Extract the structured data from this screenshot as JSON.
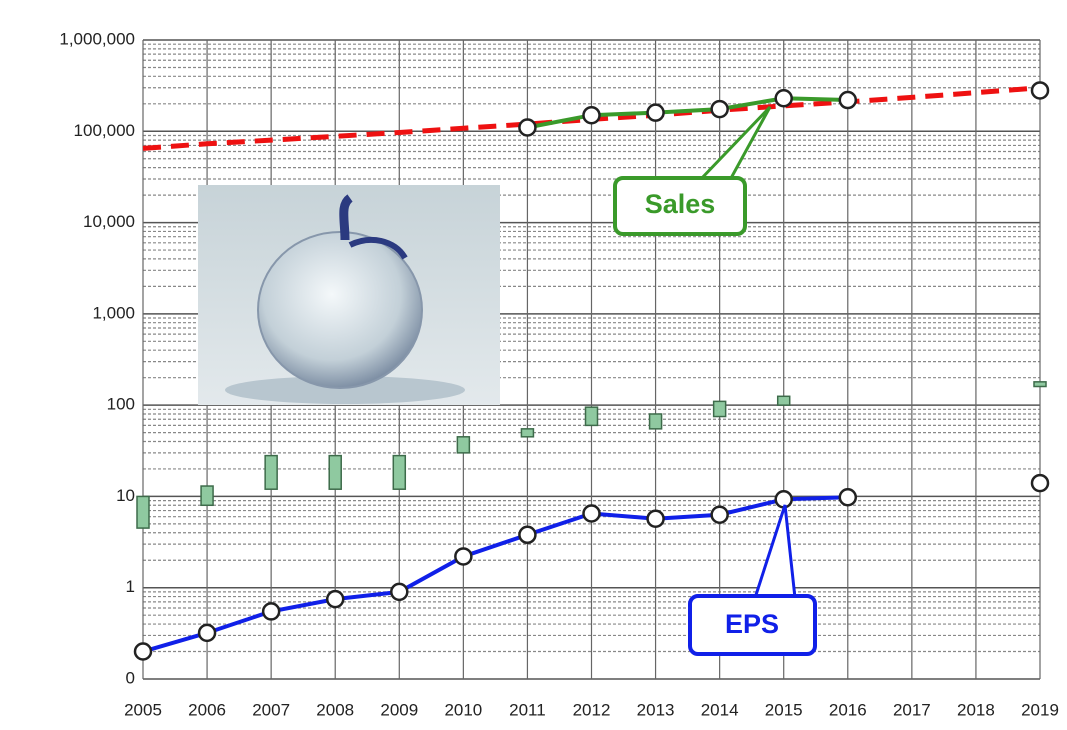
{
  "chart_data": {
    "type": "line",
    "log_scale": true,
    "grid": true,
    "categories": [
      "2005",
      "2006",
      "2007",
      "2008",
      "2009",
      "2010",
      "2011",
      "2012",
      "2013",
      "2014",
      "2015",
      "2016",
      "2017",
      "2018",
      "2019"
    ],
    "ylim": [
      0.1,
      1000000
    ],
    "yticks": [
      {
        "value": 0.1,
        "label": "0"
      },
      1,
      10,
      100,
      {
        "value": 1000,
        "label": "1,000"
      },
      {
        "value": 10000,
        "label": "10,000"
      },
      {
        "value": 100000,
        "label": "100,000"
      },
      {
        "value": 1000000,
        "label": "1,000,000"
      }
    ],
    "series": [
      {
        "name": "Sales",
        "color": "#3a9a2a",
        "values": [
          null,
          null,
          null,
          null,
          null,
          null,
          110000,
          150000,
          160000,
          175000,
          230000,
          220000,
          null,
          null,
          280000
        ]
      },
      {
        "name": "EPS",
        "color": "#1020e8",
        "values": [
          0.2,
          0.32,
          0.55,
          0.75,
          0.9,
          2.2,
          3.8,
          6.5,
          5.7,
          6.3,
          9.3,
          9.8,
          null,
          null,
          14
        ]
      }
    ],
    "trend": {
      "color": "#ee1111",
      "values": [
        65000,
        73000,
        80000,
        88000,
        97000,
        108000,
        120000,
        135000,
        150000,
        170000,
        190000,
        210000,
        235000,
        265000,
        300000
      ]
    },
    "price_range": {
      "color": "#8fc9a0",
      "low": [
        4.5,
        8,
        12,
        12,
        12,
        30,
        45,
        60,
        55,
        75,
        100,
        null,
        null,
        null,
        160
      ],
      "high": [
        10,
        13,
        28,
        28,
        28,
        45,
        55,
        95,
        80,
        110,
        125,
        null,
        null,
        null,
        180
      ]
    }
  }
}
